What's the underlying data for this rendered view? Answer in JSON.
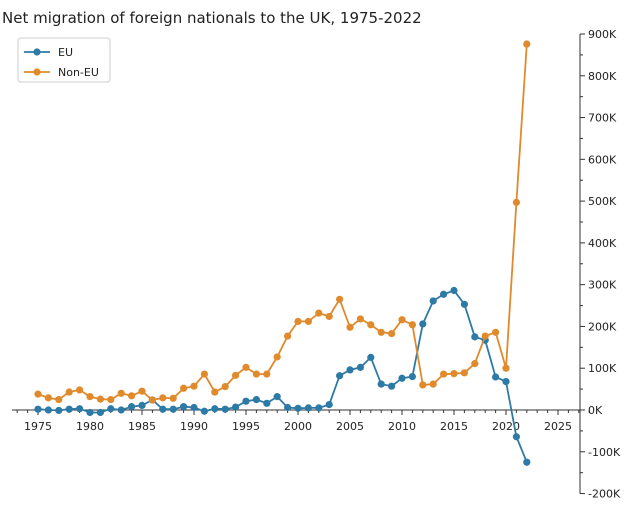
{
  "chart_data": {
    "type": "line",
    "title": "Net migration of foreign nationals to the UK, 1975-2022",
    "xlabel": "",
    "ylabel": "",
    "xlim": [
      1973,
      2028
    ],
    "ylim": [
      -200000,
      900000
    ],
    "xticks": [
      1975,
      1980,
      1985,
      1990,
      1995,
      2000,
      2005,
      2010,
      2015,
      2020,
      2025
    ],
    "yticks": [
      -200000,
      -100000,
      0,
      100000,
      200000,
      300000,
      400000,
      500000,
      600000,
      700000,
      800000,
      900000
    ],
    "ytick_labels": [
      "-200K",
      "-100K",
      "0K",
      "100K",
      "200K",
      "300K",
      "400K",
      "500K",
      "600K",
      "700K",
      "800K",
      "900K"
    ],
    "y_axis_side": "right",
    "grid": false,
    "legend_position": "top-left",
    "x": [
      1975,
      1976,
      1977,
      1978,
      1979,
      1980,
      1981,
      1982,
      1983,
      1984,
      1985,
      1986,
      1987,
      1988,
      1989,
      1990,
      1991,
      1992,
      1993,
      1994,
      1995,
      1996,
      1997,
      1998,
      1999,
      2000,
      2001,
      2002,
      2003,
      2004,
      2005,
      2006,
      2007,
      2008,
      2009,
      2010,
      2011,
      2012,
      2013,
      2014,
      2015,
      2016,
      2017,
      2018,
      2019,
      2020,
      2021,
      2022
    ],
    "series": [
      {
        "name": "EU",
        "color": "#2e7aa6",
        "values": [
          2000,
          0,
          -1000,
          2000,
          3000,
          -6000,
          -6000,
          3000,
          0,
          8000,
          11000,
          24000,
          2000,
          2000,
          8000,
          6000,
          -3000,
          3000,
          2000,
          7000,
          21000,
          25000,
          16000,
          32000,
          6000,
          4000,
          5000,
          5000,
          13000,
          82000,
          96000,
          102000,
          126000,
          62000,
          57000,
          76000,
          80000,
          206000,
          261000,
          277000,
          286000,
          253000,
          175000,
          167000,
          79000,
          68000,
          -64000,
          -125000
        ]
      },
      {
        "name": "Non-EU",
        "color": "#e08a2c",
        "values": [
          38000,
          29000,
          25000,
          43000,
          48000,
          32000,
          26000,
          25000,
          40000,
          34000,
          45000,
          24000,
          29000,
          28000,
          52000,
          57000,
          86000,
          43000,
          56000,
          83000,
          102000,
          86000,
          86000,
          127000,
          177000,
          212000,
          212000,
          232000,
          224000,
          265000,
          198000,
          218000,
          204000,
          186000,
          183000,
          216000,
          204000,
          60000,
          62000,
          86000,
          87000,
          89000,
          111000,
          177000,
          186000,
          100000,
          497000,
          876000
        ]
      }
    ]
  }
}
